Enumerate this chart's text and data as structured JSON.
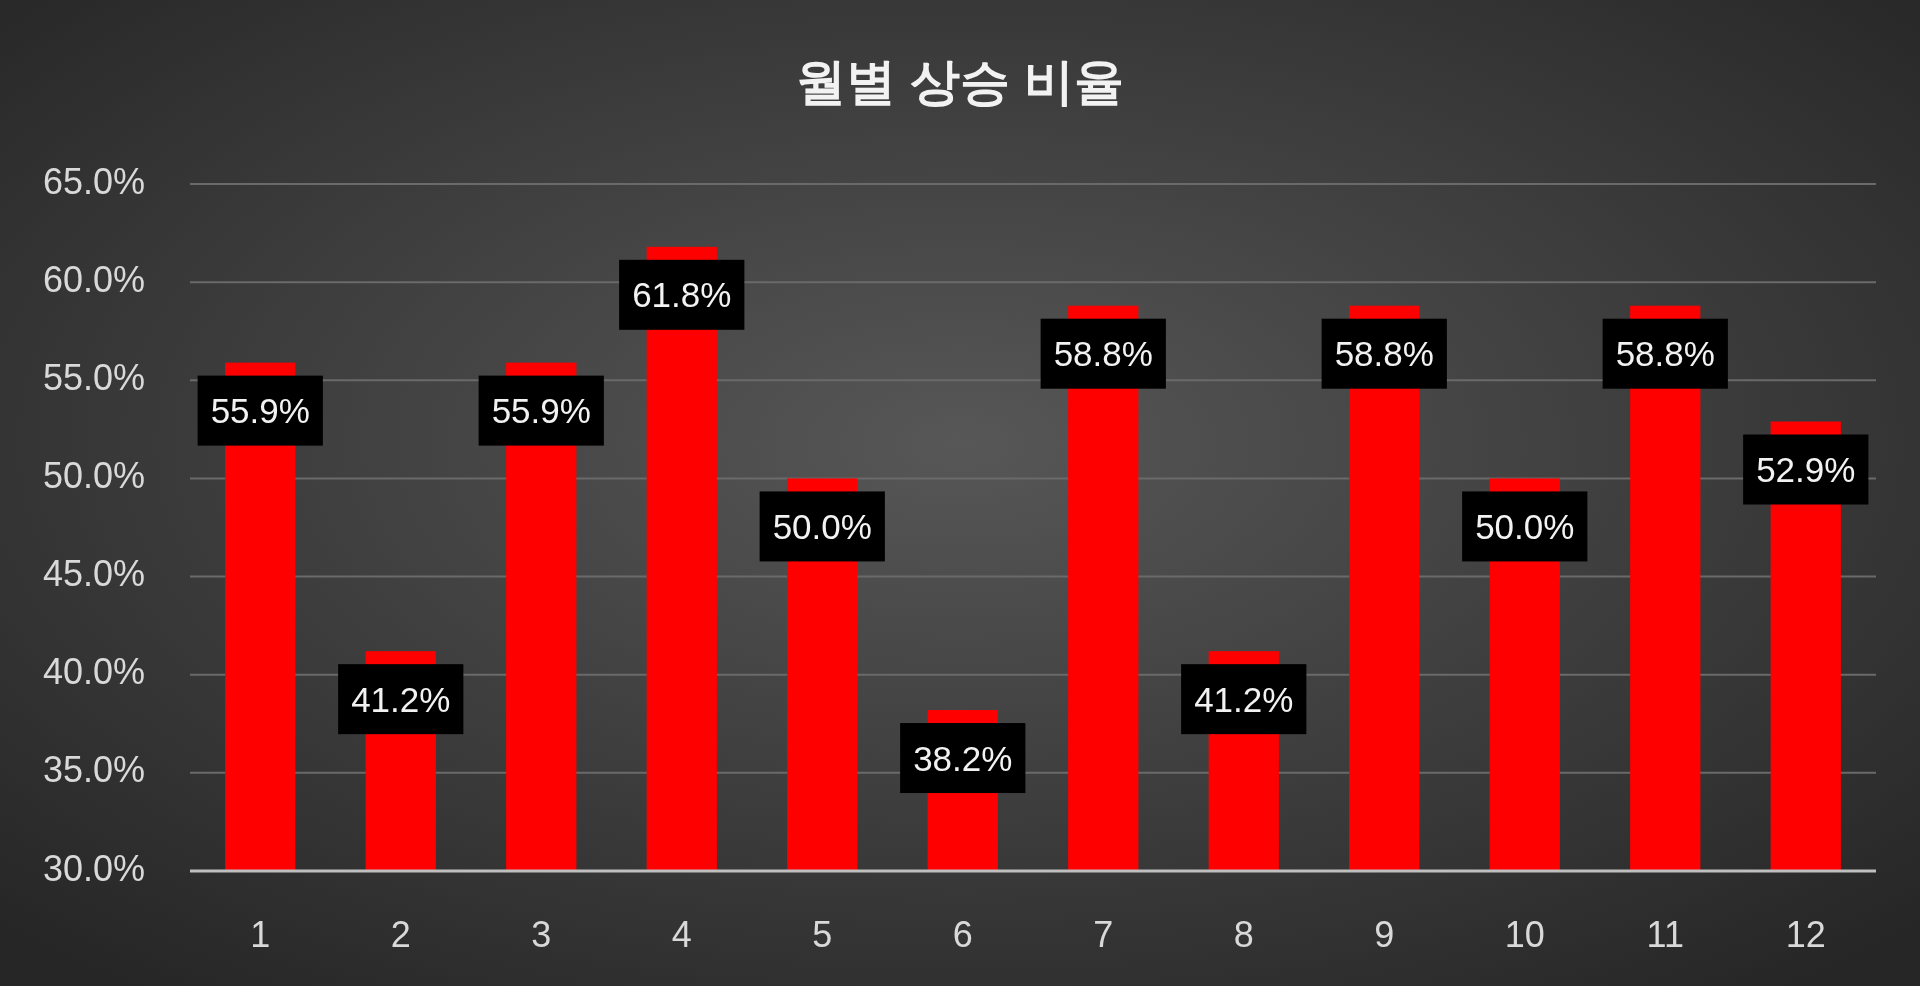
{
  "chart_data": {
    "type": "bar",
    "title": "월별 상승 비율",
    "categories": [
      "1",
      "2",
      "3",
      "4",
      "5",
      "6",
      "7",
      "8",
      "9",
      "10",
      "11",
      "12"
    ],
    "values": [
      55.9,
      41.2,
      55.9,
      61.8,
      50.0,
      38.2,
      58.8,
      41.2,
      58.8,
      50.0,
      58.8,
      52.9
    ],
    "value_labels": [
      "55.9%",
      "41.2%",
      "55.9%",
      "61.8%",
      "50.0%",
      "38.2%",
      "58.8%",
      "41.2%",
      "58.8%",
      "50.0%",
      "58.8%",
      "52.9%"
    ],
    "color": "#ff0000",
    "ylim": [
      30,
      65
    ],
    "yticks": [
      {
        "value": 30,
        "label": "30.0%"
      },
      {
        "value": 35,
        "label": "35.0%"
      },
      {
        "value": 40,
        "label": "40.0%"
      },
      {
        "value": 45,
        "label": "45.0%"
      },
      {
        "value": 50,
        "label": "50.0%"
      },
      {
        "value": 55,
        "label": "55.0%"
      },
      {
        "value": 60,
        "label": "60.0%"
      },
      {
        "value": 65,
        "label": "65.0%"
      }
    ],
    "grid": "y"
  }
}
